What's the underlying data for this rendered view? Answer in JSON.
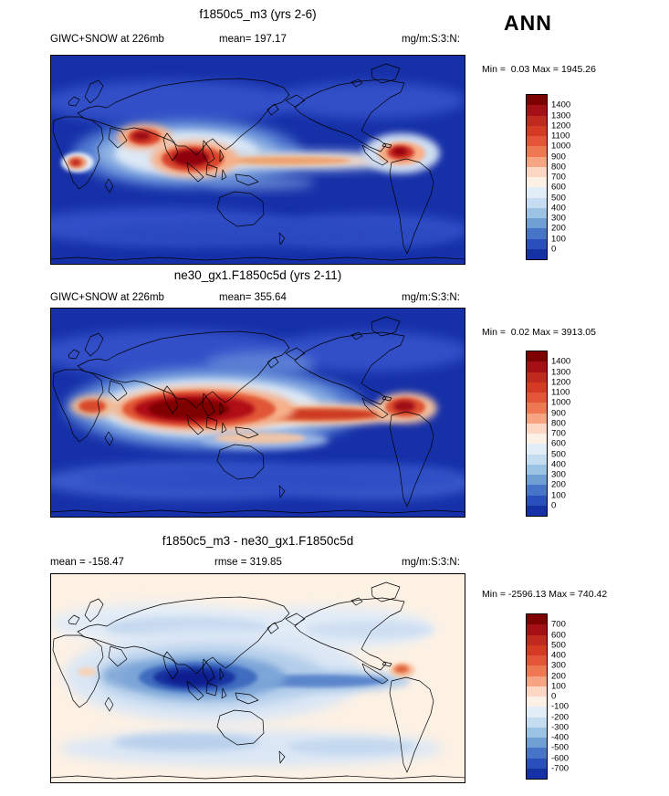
{
  "header": {
    "season_label": "ANN"
  },
  "panels": [
    {
      "title": "f1850c5_m3 (yrs 2-6)",
      "left_label": "GIWC+SNOW at 226mb",
      "center_label": "mean= 197.17",
      "units": "mg/m:S:3:N:",
      "minmax": "Min =  0.03 Max = 1945.26",
      "colorbar": {
        "ticks": [
          "1400",
          "1300",
          "1200",
          "1100",
          "1000",
          "900",
          "800",
          "700",
          "600",
          "500",
          "400",
          "300",
          "200",
          "100",
          "0"
        ],
        "colors": [
          "#7f0000",
          "#a50f15",
          "#c1281e",
          "#d73a23",
          "#e65538",
          "#f07850",
          "#f6a582",
          "#fbd7c4",
          "#fdf1e6",
          "#e3edf8",
          "#c6dcf0",
          "#9cc3e4",
          "#6f9fd4",
          "#4575c4",
          "#2a4fbb",
          "#1630a8"
        ]
      }
    },
    {
      "title": "ne30_gx1.F1850c5d (yrs 2-11)",
      "left_label": "GIWC+SNOW at 226mb",
      "center_label": "mean= 355.64",
      "units": "mg/m:S:3:N:",
      "minmax": "Min =  0.02 Max = 3913.05",
      "colorbar": {
        "ticks": [
          "1400",
          "1300",
          "1200",
          "1100",
          "1000",
          "900",
          "800",
          "700",
          "600",
          "500",
          "400",
          "300",
          "200",
          "100",
          "0"
        ],
        "colors": [
          "#7f0000",
          "#a50f15",
          "#c1281e",
          "#d73a23",
          "#e65538",
          "#f07850",
          "#f6a582",
          "#fbd7c4",
          "#fdf1e6",
          "#e3edf8",
          "#c6dcf0",
          "#9cc3e4",
          "#6f9fd4",
          "#4575c4",
          "#2a4fbb",
          "#1630a8"
        ]
      }
    },
    {
      "title": "f1850c5_m3 - ne30_gx1.F1850c5d",
      "left_label": "mean = -158.47",
      "center_label": "rmse = 319.85",
      "units": "mg/m:S:3:N:",
      "minmax": "Min = -2596.13 Max = 740.42",
      "colorbar": {
        "ticks": [
          "700",
          "600",
          "500",
          "400",
          "300",
          "200",
          "100",
          "0",
          "-100",
          "-200",
          "-300",
          "-400",
          "-500",
          "-600",
          "-700"
        ],
        "colors": [
          "#7f0000",
          "#a50f15",
          "#c1281e",
          "#d73a23",
          "#e65538",
          "#f07850",
          "#f6a582",
          "#fbd7c4",
          "#fdf1e6",
          "#e3edf8",
          "#c6dcf0",
          "#9cc3e4",
          "#6f9fd4",
          "#4575c4",
          "#2a4fbb",
          "#1630a8"
        ]
      }
    }
  ],
  "chart_data": [
    {
      "type": "heatmap",
      "subtype": "global-contour-map",
      "title": "f1850c5_m3 (yrs 2-6)",
      "variable": "GIWC+SNOW at 226mb",
      "units": "mg/m:S:3:N:",
      "season": "ANN",
      "mean": 197.17,
      "min": 0.03,
      "max": 1945.26,
      "contour_levels": [
        0,
        100,
        200,
        300,
        400,
        500,
        600,
        700,
        800,
        900,
        1000,
        1100,
        1200,
        1300,
        1400
      ],
      "palette_top_to_bottom": [
        "#7f0000",
        "#a50f15",
        "#c1281e",
        "#d73a23",
        "#e65538",
        "#f07850",
        "#f6a582",
        "#fbd7c4",
        "#fdf1e6",
        "#e3edf8",
        "#c6dcf0",
        "#9cc3e4",
        "#6f9fd4",
        "#4575c4",
        "#2a4fbb",
        "#1630a8"
      ],
      "projection": "cylindrical world map 90N-90S",
      "high_value_regions": [
        "equatorial West Africa",
        "Middle East / northern India",
        "Bay of Bengal / Maritime Continent",
        "ITCZ band across equatorial Pacific",
        "northern South America"
      ],
      "low_value_regions": [
        "subtropical oceans",
        "mid/high latitudes (deep blue background near 0)"
      ]
    },
    {
      "type": "heatmap",
      "subtype": "global-contour-map",
      "title": "ne30_gx1.F1850c5d (yrs 2-11)",
      "variable": "GIWC+SNOW at 226mb",
      "units": "mg/m:S:3:N:",
      "season": "ANN",
      "mean": 355.64,
      "min": 0.02,
      "max": 3913.05,
      "contour_levels": [
        0,
        100,
        200,
        300,
        400,
        500,
        600,
        700,
        800,
        900,
        1000,
        1100,
        1200,
        1300,
        1400
      ],
      "palette_top_to_bottom": [
        "#7f0000",
        "#a50f15",
        "#c1281e",
        "#d73a23",
        "#e65538",
        "#f07850",
        "#f6a582",
        "#fbd7c4",
        "#fdf1e6",
        "#e3edf8",
        "#c6dcf0",
        "#9cc3e4",
        "#6f9fd4",
        "#4575c4",
        "#2a4fbb",
        "#1630a8"
      ],
      "projection": "cylindrical world map 90N-90S",
      "high_value_regions": [
        "very broad dark-red maximum from equatorial Africa across Indian Ocean and Maritime Continent",
        "ITCZ band extending east across Pacific to South America",
        "northern South America"
      ],
      "low_value_regions": [
        "subtropical oceans",
        "mid/high latitudes (deep blue background near 0)"
      ]
    },
    {
      "type": "heatmap",
      "subtype": "global-difference-map",
      "title": "f1850c5_m3 - ne30_gx1.F1850c5d",
      "variable": "GIWC+SNOW at 226mb difference",
      "units": "mg/m:S:3:N:",
      "season": "ANN",
      "mean": -158.47,
      "rmse": 319.85,
      "min": -2596.13,
      "max": 740.42,
      "contour_levels": [
        -700,
        -600,
        -500,
        -400,
        -300,
        -200,
        -100,
        0,
        100,
        200,
        300,
        400,
        500,
        600,
        700
      ],
      "palette_top_to_bottom": [
        "#7f0000",
        "#a50f15",
        "#c1281e",
        "#d73a23",
        "#e65538",
        "#f07850",
        "#f6a582",
        "#fbd7c4",
        "#fdf1e6",
        "#e3edf8",
        "#c6dcf0",
        "#9cc3e4",
        "#6f9fd4",
        "#4575c4",
        "#2a4fbb",
        "#1630a8"
      ],
      "projection": "cylindrical world map 90N-90S",
      "negative_regions": [
        "strong negative (dark blue) over Maritime Continent",
        "negative band along equatorial Indian Ocean and Pacific ITCZ",
        "light-blue bands in mid-latitudes"
      ],
      "positive_regions": [
        "small positive (orange) spot over northern South America",
        "pale positive background elsewhere"
      ]
    }
  ]
}
